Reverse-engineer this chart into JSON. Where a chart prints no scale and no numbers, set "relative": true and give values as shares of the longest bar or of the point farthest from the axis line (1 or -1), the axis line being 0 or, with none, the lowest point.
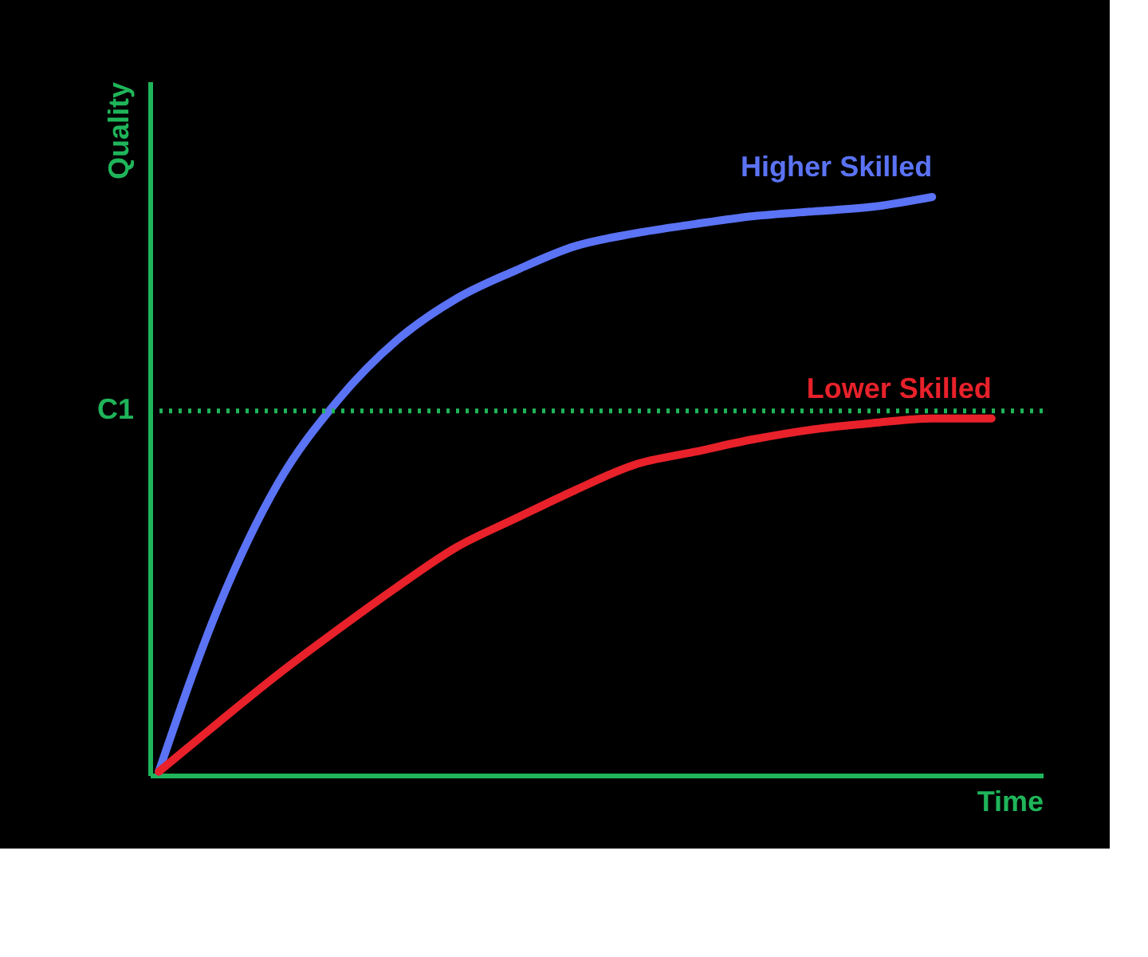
{
  "chart_data": {
    "type": "line",
    "xlabel": "Time",
    "ylabel": "Quality",
    "relative": true,
    "tick_labels": false,
    "categories": [
      null,
      null,
      null,
      null,
      null,
      null,
      null,
      null,
      null,
      null,
      null,
      null,
      null,
      null,
      null
    ],
    "series": [
      {
        "name": "Higher Skilled",
        "color": "#5b73f5",
        "values": [
          0.006,
          0.29,
          0.504,
          0.647,
          0.752,
          0.824,
          0.873,
          0.915,
          0.937,
          0.953,
          0.967,
          0.975,
          0.983,
          1.0,
          null
        ]
      },
      {
        "name": "Lower Skilled",
        "color": "#e8212a",
        "values": [
          0.006,
          0.091,
          0.174,
          0.251,
          0.325,
          0.394,
          0.444,
          0.493,
          0.537,
          0.559,
          0.581,
          0.598,
          0.609,
          0.617,
          0.617
        ]
      }
    ],
    "ref_lines": [
      {
        "axis": "y",
        "value": 0.63,
        "label": "C1",
        "color": "#1fb55a",
        "line_style": "dotted"
      }
    ]
  }
}
